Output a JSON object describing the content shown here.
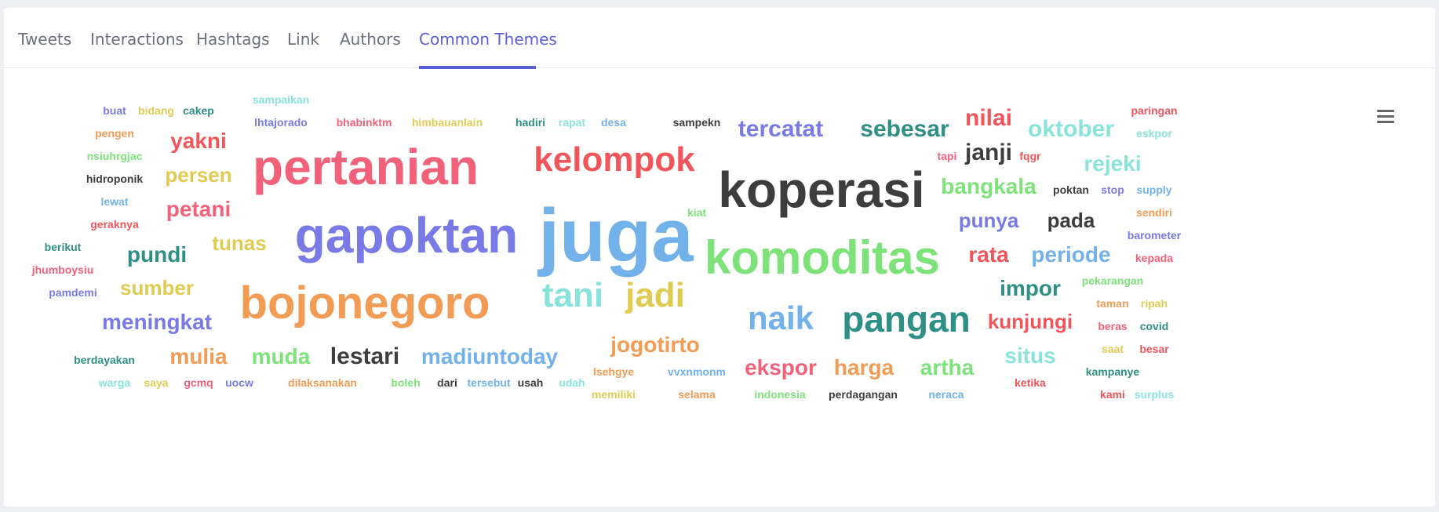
{
  "tabs": [
    {
      "label": "Tweets"
    },
    {
      "label": "Interactions"
    },
    {
      "label": "Hashtags"
    },
    {
      "label": "Link"
    },
    {
      "label": "Authors"
    },
    {
      "label": "Common Themes"
    }
  ],
  "active_tab": "Common Themes",
  "menu_icon": "hamburger-menu-icon",
  "palette": {
    "accent": "#5b5fd6",
    "words": [
      "#f2617a",
      "#f0555a",
      "#3d3d3f",
      "#7a7ae6",
      "#72b1ea",
      "#f29b55",
      "#7de27a",
      "#e0cb52",
      "#2e8f84",
      "#8ae3db"
    ]
  },
  "word_cloud": [
    {
      "text": "juga",
      "color": "#72b1ea"
    },
    {
      "text": "koperasi",
      "color": "#3d3d3f"
    },
    {
      "text": "komoditas",
      "color": "#7de27a"
    },
    {
      "text": "gapoktan",
      "color": "#7a7ae6"
    },
    {
      "text": "pertanian",
      "color": "#f2617a"
    },
    {
      "text": "bojonegoro",
      "color": "#f29b55"
    },
    {
      "text": "kelompok",
      "color": "#f0555a"
    },
    {
      "text": "pangan",
      "color": "#2e8f84"
    },
    {
      "text": "naik",
      "color": "#72b1ea"
    },
    {
      "text": "tani",
      "color": "#8ae3db"
    },
    {
      "text": "jadi",
      "color": "#e0cb52"
    },
    {
      "text": "tercatat",
      "color": "#7a7ae6"
    },
    {
      "text": "sebesar",
      "color": "#2e8f84"
    },
    {
      "text": "oktober",
      "color": "#8ae3db"
    },
    {
      "text": "nilai",
      "color": "#f0555a"
    },
    {
      "text": "janji",
      "color": "#3d3d3f"
    },
    {
      "text": "rejeki",
      "color": "#8ae3db"
    },
    {
      "text": "bangkala",
      "color": "#7de27a"
    },
    {
      "text": "punya",
      "color": "#7a7ae6"
    },
    {
      "text": "pada",
      "color": "#3d3d3f"
    },
    {
      "text": "rata",
      "color": "#f0555a"
    },
    {
      "text": "periode",
      "color": "#72b1ea"
    },
    {
      "text": "impor",
      "color": "#2e8f84"
    },
    {
      "text": "kunjungi",
      "color": "#f0555a"
    },
    {
      "text": "situs",
      "color": "#8ae3db"
    },
    {
      "text": "ekspor",
      "color": "#f2617a"
    },
    {
      "text": "harga",
      "color": "#f29b55"
    },
    {
      "text": "artha",
      "color": "#7de27a"
    },
    {
      "text": "jogotirto",
      "color": "#f29b55"
    },
    {
      "text": "madiuntoday",
      "color": "#72b1ea"
    },
    {
      "text": "lestari",
      "color": "#3d3d3f"
    },
    {
      "text": "muda",
      "color": "#7de27a"
    },
    {
      "text": "mulia",
      "color": "#f29b55"
    },
    {
      "text": "meningkat",
      "color": "#7a7ae6"
    },
    {
      "text": "sumber",
      "color": "#e0cb52"
    },
    {
      "text": "pundi",
      "color": "#2e8f84"
    },
    {
      "text": "tunas",
      "color": "#e0cb52"
    },
    {
      "text": "petani",
      "color": "#f2617a"
    },
    {
      "text": "persen",
      "color": "#e0cb52"
    },
    {
      "text": "yakni",
      "color": "#f0555a"
    },
    {
      "text": "buat",
      "color": "#7a7ae6"
    },
    {
      "text": "bidang",
      "color": "#e0cb52"
    },
    {
      "text": "cakep",
      "color": "#2e8f84"
    },
    {
      "text": "sampaikan",
      "color": "#8ae3db"
    },
    {
      "text": "pengen",
      "color": "#f29b55"
    },
    {
      "text": "lhtajorado",
      "color": "#7a7ae6"
    },
    {
      "text": "bhabinktm",
      "color": "#f2617a"
    },
    {
      "text": "himbauanlain",
      "color": "#e0cb52"
    },
    {
      "text": "hadiri",
      "color": "#2e8f84"
    },
    {
      "text": "rapat",
      "color": "#8ae3db"
    },
    {
      "text": "desa",
      "color": "#72b1ea"
    },
    {
      "text": "sampekn",
      "color": "#3d3d3f"
    },
    {
      "text": "nsiuhrgjac",
      "color": "#7de27a"
    },
    {
      "text": "hidroponik",
      "color": "#3d3d3f"
    },
    {
      "text": "lewat",
      "color": "#72b1ea"
    },
    {
      "text": "geraknya",
      "color": "#f0555a"
    },
    {
      "text": "berikut",
      "color": "#2e8f84"
    },
    {
      "text": "jhumboysiu",
      "color": "#f2617a"
    },
    {
      "text": "pamdemi",
      "color": "#7a7ae6"
    },
    {
      "text": "kiat",
      "color": "#7de27a"
    },
    {
      "text": "tapi",
      "color": "#f2617a"
    },
    {
      "text": "fqgr",
      "color": "#f0555a"
    },
    {
      "text": "paringan",
      "color": "#f0555a"
    },
    {
      "text": "eskpor",
      "color": "#8ae3db"
    },
    {
      "text": "poktan",
      "color": "#3d3d3f"
    },
    {
      "text": "stop",
      "color": "#7a7ae6"
    },
    {
      "text": "supply",
      "color": "#72b1ea"
    },
    {
      "text": "sendiri",
      "color": "#f29b55"
    },
    {
      "text": "barometer",
      "color": "#7a7ae6"
    },
    {
      "text": "kepada",
      "color": "#f2617a"
    },
    {
      "text": "pekarangan",
      "color": "#7de27a"
    },
    {
      "text": "taman",
      "color": "#f29b55"
    },
    {
      "text": "ripah",
      "color": "#e0cb52"
    },
    {
      "text": "beras",
      "color": "#f2617a"
    },
    {
      "text": "covid",
      "color": "#2e8f84"
    },
    {
      "text": "saat",
      "color": "#e0cb52"
    },
    {
      "text": "besar",
      "color": "#f0555a"
    },
    {
      "text": "kampanye",
      "color": "#2e8f84"
    },
    {
      "text": "ketika",
      "color": "#f0555a"
    },
    {
      "text": "kami",
      "color": "#f0555a"
    },
    {
      "text": "surplus",
      "color": "#8ae3db"
    },
    {
      "text": "berdayakan",
      "color": "#2e8f84"
    },
    {
      "text": "warga",
      "color": "#8ae3db"
    },
    {
      "text": "saya",
      "color": "#e0cb52"
    },
    {
      "text": "gcmq",
      "color": "#f2617a"
    },
    {
      "text": "uocw",
      "color": "#7a7ae6"
    },
    {
      "text": "dilaksanakan",
      "color": "#f29b55"
    },
    {
      "text": "boleh",
      "color": "#7de27a"
    },
    {
      "text": "dari",
      "color": "#3d3d3f"
    },
    {
      "text": "tersebut",
      "color": "#72b1ea"
    },
    {
      "text": "usah",
      "color": "#3d3d3f"
    },
    {
      "text": "udah",
      "color": "#8ae3db"
    },
    {
      "text": "lsehgye",
      "color": "#f29b55"
    },
    {
      "text": "vvxnmonm",
      "color": "#72b1ea"
    },
    {
      "text": "memiliki",
      "color": "#e0cb52"
    },
    {
      "text": "selama",
      "color": "#f29b55"
    },
    {
      "text": "indonesia",
      "color": "#7de27a"
    },
    {
      "text": "perdagangan",
      "color": "#3d3d3f"
    },
    {
      "text": "neraca",
      "color": "#72b1ea"
    }
  ]
}
